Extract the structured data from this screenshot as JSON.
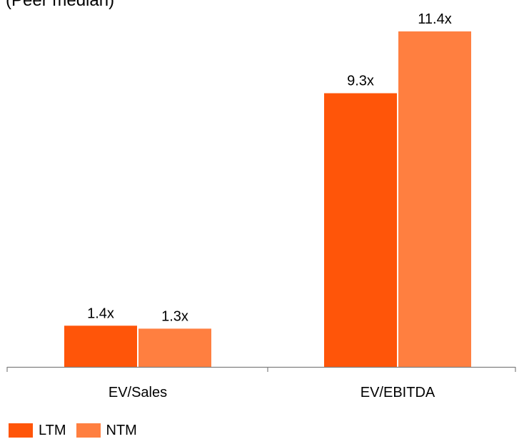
{
  "chart_data": {
    "type": "bar",
    "title": "(Peer median)",
    "categories": [
      "EV/Sales",
      "EV/EBITDA"
    ],
    "series": [
      {
        "name": "LTM",
        "values": [
          1.4,
          9.3
        ],
        "labels": [
          "1.4x",
          "9.3x"
        ],
        "color": "#FF5509"
      },
      {
        "name": "NTM",
        "values": [
          1.3,
          11.4
        ],
        "labels": [
          "1.3x",
          "11.4x"
        ],
        "color": "#FF7F40"
      }
    ],
    "ylim": [
      0,
      12.5
    ],
    "grid": false,
    "legend": "bottom-left"
  }
}
